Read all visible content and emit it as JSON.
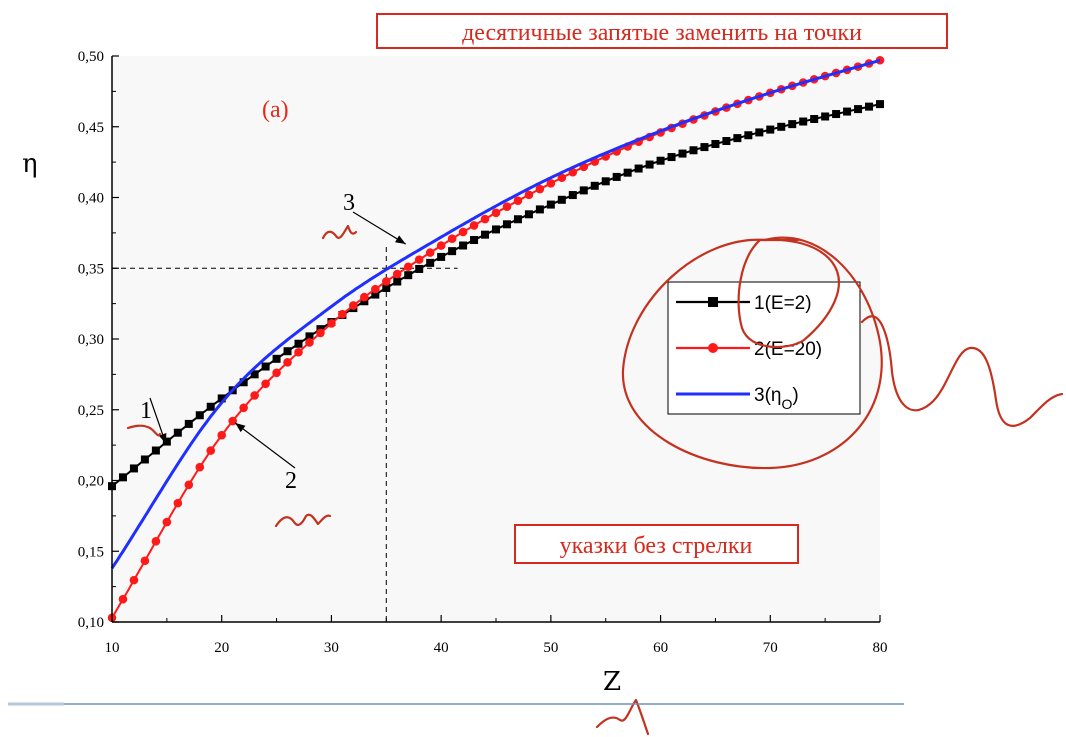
{
  "chart_data": {
    "type": "line",
    "panel_label": "(a)",
    "xlabel": "Z",
    "ylabel": "η",
    "xlim": [
      10,
      80
    ],
    "ylim": [
      0.1,
      0.5
    ],
    "x_ticks": [
      10,
      20,
      30,
      40,
      50,
      60,
      70,
      80
    ],
    "x_tick_labels": [
      "10",
      "20",
      "30",
      "40",
      "50",
      "60",
      "70",
      "80"
    ],
    "y_ticks": [
      0.1,
      0.15,
      0.2,
      0.25,
      0.3,
      0.35,
      0.4,
      0.45,
      0.5
    ],
    "y_tick_labels": [
      "0,10",
      "0,15",
      "0,20",
      "0,25",
      "0,30",
      "0,35",
      "0,40",
      "0,45",
      "0,50"
    ],
    "grid": false,
    "legend_position": "right",
    "series": [
      {
        "name": "1(E=2)",
        "marker": "square",
        "color": "#000000",
        "x": [
          10,
          20,
          30,
          40,
          50,
          60,
          70,
          80
        ],
        "y": [
          0.196,
          0.258,
          0.312,
          0.358,
          0.395,
          0.426,
          0.448,
          0.466
        ]
      },
      {
        "name": "2(E=20)",
        "marker": "circle",
        "color": "#ff1a1a",
        "x": [
          10,
          20,
          30,
          40,
          50,
          60,
          70,
          80
        ],
        "y": [
          0.103,
          0.232,
          0.311,
          0.366,
          0.41,
          0.446,
          0.474,
          0.497
        ]
      },
      {
        "name": "3(η",
        "name_subscript": "O",
        "name_suffix": ")",
        "marker": "none",
        "color": "#1f2fff",
        "x": [
          10,
          20,
          30,
          40,
          50,
          60,
          70,
          80
        ],
        "y": [
          0.138,
          0.255,
          0.323,
          0.372,
          0.414,
          0.447,
          0.474,
          0.497
        ]
      }
    ],
    "annotations": [
      {
        "text": "1",
        "points_to_series": 1,
        "target": [
          15,
          0.224
        ]
      },
      {
        "text": "2",
        "points_to_series": 2,
        "target": [
          21,
          0.242
        ]
      },
      {
        "text": "3",
        "points_to_series": 3,
        "target": [
          37,
          0.366
        ]
      }
    ],
    "reference_lines": {
      "x": 35,
      "y": 0.35
    }
  },
  "notes": {
    "top": "десятичные запятые заменить на точки",
    "middle": "указки без стрелки"
  },
  "colors": {
    "annotation_red": "#d62a1e",
    "axis": "#000000",
    "plot_bg": "#f8f8f8",
    "bottom_rule": "#6f8fbd"
  }
}
